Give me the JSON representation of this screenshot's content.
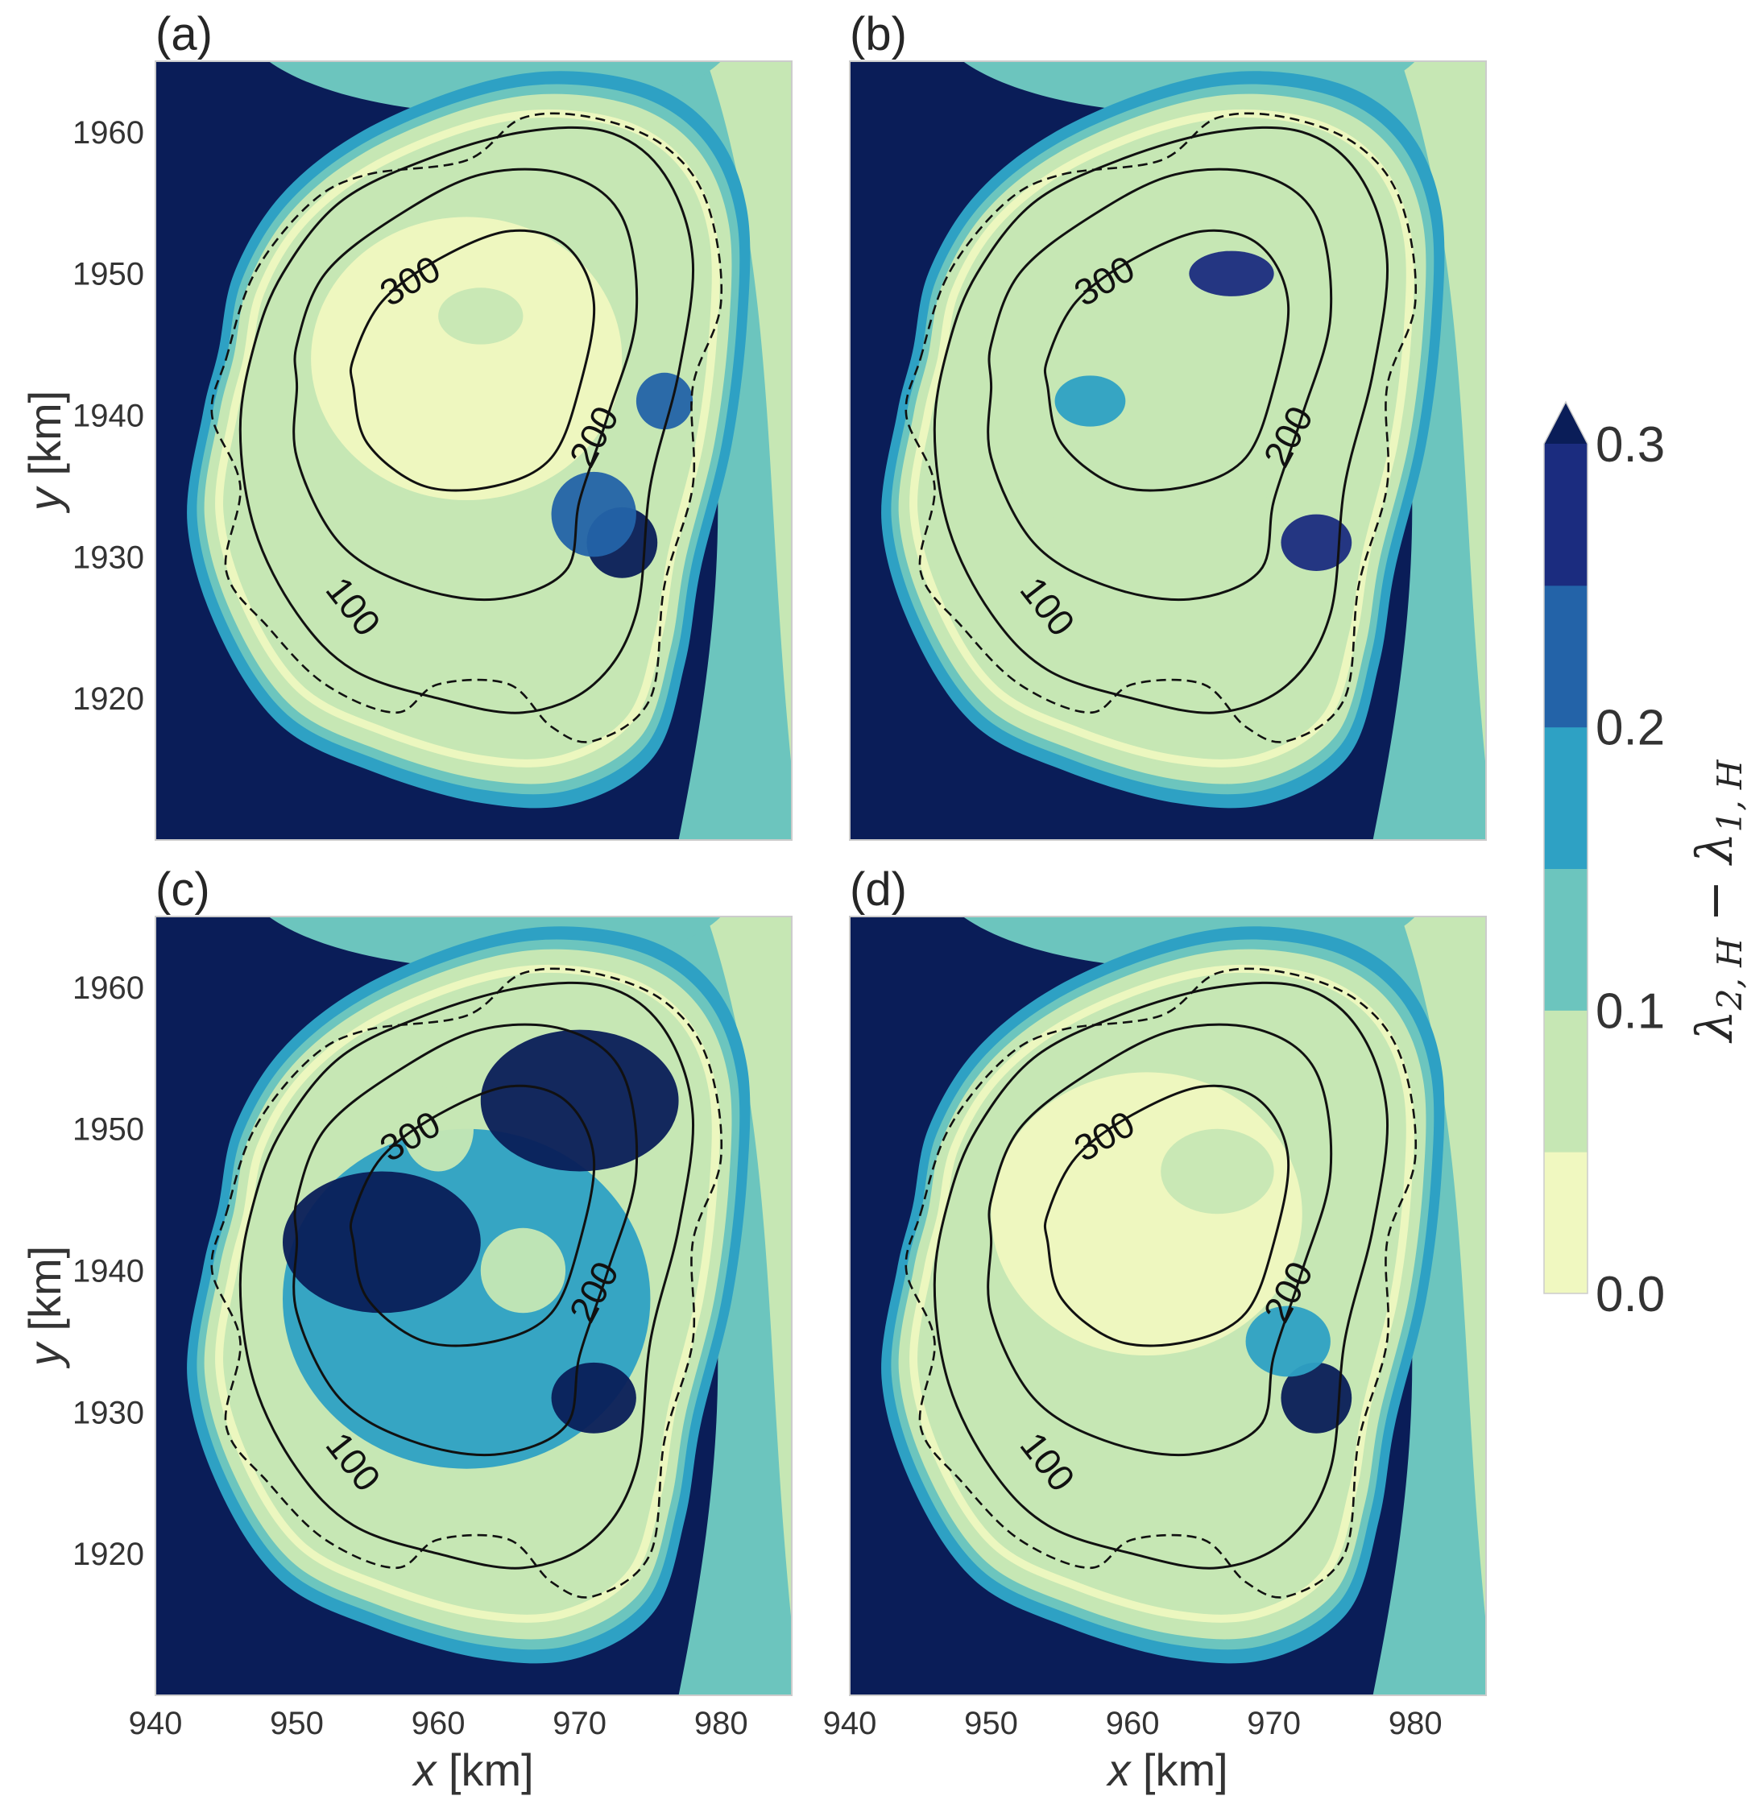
{
  "figure": {
    "colorbar": {
      "label_main": "λ",
      "label_sub1": "2, H",
      "label_minus": " − ",
      "label_main2": "λ",
      "label_sub2": "1, H",
      "ticks": [
        "0.0",
        "0.1",
        "0.2",
        "0.3"
      ],
      "tick_values": [
        0.0,
        0.1,
        0.2,
        0.3
      ],
      "levels": [
        0.0,
        0.05,
        0.1,
        0.15,
        0.2,
        0.25,
        0.3
      ],
      "colors": [
        "#f0f8c0",
        "#c6e7b4",
        "#6cc5be",
        "#2ea1c4",
        "#2363a8",
        "#1b2c7f",
        "#0a1d58"
      ],
      "extend": "max"
    },
    "axis": {
      "xlabel_var": "x",
      "xlabel_unit": " [km]",
      "ylabel_var": "y",
      "ylabel_unit": " [km]"
    }
  },
  "chart_data": [
    {
      "panel": "(a)",
      "type": "heatmap",
      "xlim": [
        940,
        985
      ],
      "ylim": [
        1910,
        1965
      ],
      "xticks": [
        "940",
        "950",
        "960",
        "970",
        "980"
      ],
      "yticks": [
        "1920",
        "1930",
        "1940",
        "1950",
        "1960"
      ],
      "show_xticks": false,
      "show_yticks": true,
      "contour_labels": [
        "300",
        "200",
        "100"
      ],
      "features": [
        {
          "x": 962,
          "y": 1944,
          "v": 0.02,
          "rx": 11,
          "ry": 10
        },
        {
          "x": 963,
          "y": 1947,
          "v": 0.08,
          "rx": 3,
          "ry": 2
        },
        {
          "x": 973,
          "y": 1931,
          "v": 0.3,
          "rx": 2.5,
          "ry": 2.5
        },
        {
          "x": 971,
          "y": 1933,
          "v": 0.2,
          "rx": 3,
          "ry": 3
        },
        {
          "x": 976,
          "y": 1941,
          "v": 0.2,
          "rx": 2,
          "ry": 2
        }
      ]
    },
    {
      "panel": "(b)",
      "type": "heatmap",
      "xlim": [
        940,
        985
      ],
      "ylim": [
        1910,
        1965
      ],
      "xticks": [
        "940",
        "950",
        "960",
        "970",
        "980"
      ],
      "yticks": [
        "1920",
        "1930",
        "1940",
        "1950",
        "1960"
      ],
      "show_xticks": false,
      "show_yticks": false,
      "contour_labels": [
        "300",
        "200",
        "100"
      ],
      "features": [
        {
          "x": 961,
          "y": 1942,
          "v": 0.07,
          "rx": 12,
          "ry": 11
        },
        {
          "x": 967,
          "y": 1950,
          "v": 0.27,
          "rx": 3,
          "ry": 1.6
        },
        {
          "x": 957,
          "y": 1941,
          "v": 0.18,
          "rx": 2.5,
          "ry": 1.8
        },
        {
          "x": 973,
          "y": 1931,
          "v": 0.25,
          "rx": 2.5,
          "ry": 2
        }
      ]
    },
    {
      "panel": "(c)",
      "type": "heatmap",
      "xlim": [
        940,
        985
      ],
      "ylim": [
        1910,
        1965
      ],
      "xticks": [
        "940",
        "950",
        "960",
        "970",
        "980"
      ],
      "yticks": [
        "1920",
        "1930",
        "1940",
        "1950",
        "1960"
      ],
      "show_xticks": true,
      "show_yticks": true,
      "contour_labels": [
        "300",
        "200",
        "100"
      ],
      "features": [
        {
          "x": 962,
          "y": 1938,
          "v": 0.18,
          "rx": 13,
          "ry": 12
        },
        {
          "x": 956,
          "y": 1942,
          "v": 0.3,
          "rx": 7,
          "ry": 5
        },
        {
          "x": 970,
          "y": 1952,
          "v": 0.3,
          "rx": 7,
          "ry": 5
        },
        {
          "x": 960,
          "y": 1950,
          "v": 0.05,
          "rx": 2.5,
          "ry": 3
        },
        {
          "x": 966,
          "y": 1940,
          "v": 0.05,
          "rx": 3,
          "ry": 3
        },
        {
          "x": 971,
          "y": 1931,
          "v": 0.3,
          "rx": 3,
          "ry": 2.5
        }
      ]
    },
    {
      "panel": "(d)",
      "type": "heatmap",
      "xlim": [
        940,
        985
      ],
      "ylim": [
        1910,
        1965
      ],
      "xticks": [
        "940",
        "950",
        "960",
        "970",
        "980"
      ],
      "yticks": [
        "1920",
        "1930",
        "1940",
        "1950",
        "1960"
      ],
      "show_xticks": true,
      "show_yticks": false,
      "contour_labels": [
        "300",
        "200",
        "100"
      ],
      "features": [
        {
          "x": 961,
          "y": 1944,
          "v": 0.03,
          "rx": 11,
          "ry": 10
        },
        {
          "x": 966,
          "y": 1947,
          "v": 0.08,
          "rx": 4,
          "ry": 3
        },
        {
          "x": 973,
          "y": 1931,
          "v": 0.3,
          "rx": 2.5,
          "ry": 2.5
        },
        {
          "x": 971,
          "y": 1935,
          "v": 0.18,
          "rx": 3,
          "ry": 2.5
        }
      ]
    }
  ]
}
